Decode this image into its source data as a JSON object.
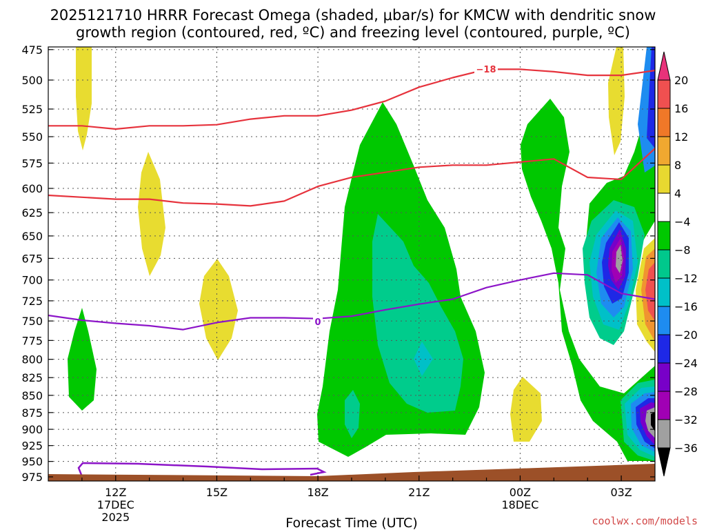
{
  "chart_data": {
    "type": "heatmap",
    "title_line1": "2025121710 HRRR Forecast Omega (shaded, μbar/s) for KMCW with dendritic snow",
    "title_line2": "growth region (contoured, red, ºC) and freezing level (contoured, purple, ºC)",
    "xlabel": "Forecast Time (UTC)",
    "credit": "coolwx.com/models",
    "y_ticks": [
      "475",
      "500",
      "525",
      "550",
      "575",
      "600",
      "625",
      "650",
      "675",
      "700",
      "725",
      "750",
      "775",
      "800",
      "825",
      "850",
      "875",
      "900",
      "925",
      "950",
      "975"
    ],
    "y_values": [
      475,
      500,
      525,
      550,
      575,
      600,
      625,
      650,
      675,
      700,
      725,
      750,
      775,
      800,
      825,
      850,
      875,
      900,
      925,
      950,
      975
    ],
    "x_ticks": [
      {
        "hour": 12,
        "label": "12Z",
        "sub1": "17DEC",
        "sub2": "2025"
      },
      {
        "hour": 15,
        "label": "15Z",
        "sub1": "",
        "sub2": ""
      },
      {
        "hour": 18,
        "label": "18Z",
        "sub1": "",
        "sub2": ""
      },
      {
        "hour": 21,
        "label": "21Z",
        "sub1": "",
        "sub2": ""
      },
      {
        "hour": 24,
        "label": "00Z",
        "sub1": "18DEC",
        "sub2": ""
      },
      {
        "hour": 27,
        "label": "03Z",
        "sub1": "",
        "sub2": ""
      }
    ],
    "x_range_hours": [
      10,
      28
    ],
    "colorbar": {
      "labels": [
        "20",
        "16",
        "12",
        "8",
        "4",
        "−4",
        "−8",
        "−12",
        "−16",
        "−20",
        "−24",
        "−28",
        "−32",
        "−36"
      ],
      "colors": [
        "#e8327a",
        "#f05050",
        "#f07828",
        "#f0a830",
        "#e8d830",
        "#ffffff",
        "#00c800",
        "#00c88c",
        "#00c0c8",
        "#1e8cf0",
        "#1e28e6",
        "#7800c8",
        "#a000b4",
        "#a0a0a0",
        "#000000"
      ]
    },
    "contour_labels": {
      "dgz_top": "−18",
      "freezing": "0"
    },
    "series": [
      {
        "name": "DGZ top (-18 C) pressure",
        "hours": [
          10,
          11,
          12,
          13,
          14,
          15,
          16,
          17,
          18,
          19,
          20,
          21,
          22,
          23,
          24,
          25,
          26,
          27,
          28
        ],
        "values": [
          540,
          540,
          543,
          540,
          540,
          539,
          534,
          531,
          531,
          526,
          518,
          506,
          498,
          491,
          491,
          493,
          496,
          496,
          492
        ]
      },
      {
        "name": "DGZ bottom (-12 C) pressure",
        "hours": [
          10,
          11,
          12,
          13,
          14,
          15,
          16,
          17,
          18,
          19,
          20,
          21,
          22,
          23,
          24,
          25,
          26,
          27,
          28
        ],
        "values": [
          607,
          609,
          611,
          611,
          615,
          616,
          618,
          613,
          598,
          589,
          584,
          579,
          577,
          577,
          574,
          571,
          589,
          591,
          561
        ]
      },
      {
        "name": "Freezing level (0 C) pressure",
        "hours": [
          10,
          11,
          12,
          13,
          14,
          15,
          16,
          17,
          18,
          19,
          20,
          21,
          22,
          23,
          24,
          25,
          26,
          27,
          28
        ],
        "values": [
          743,
          749,
          753,
          756,
          761,
          752,
          746,
          746,
          747,
          744,
          736,
          729,
          723,
          709,
          700,
          692,
          694,
          716,
          723
        ]
      }
    ]
  }
}
